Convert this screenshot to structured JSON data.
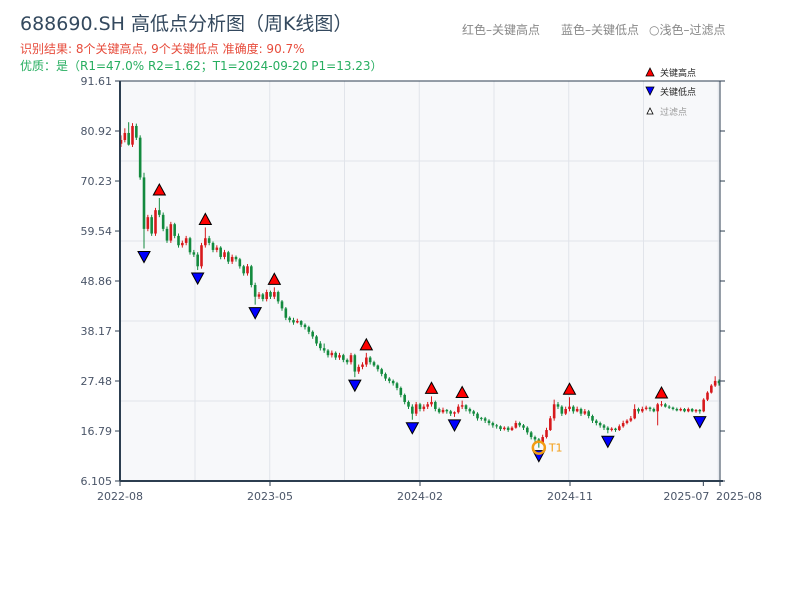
{
  "header": {
    "title": "688690.SH 高低点分析图（周K线图）",
    "result_line": "识别结果: 8个关键高点, 9个关键低点   准确度: 90.7%",
    "quality_line": "优质：是（R1=47.0%  R2=1.62；T1=2024-09-20 P1=13.23）",
    "legend_red": "红色–关键高点",
    "legend_blue": "蓝色–关键低点",
    "legend_light": "○浅色–过滤点"
  },
  "colors": {
    "up": "#d7191c",
    "down": "#138a3e",
    "high_marker": "#ff0000",
    "low_marker": "#0000ff",
    "t1_ring": "#f39c12",
    "axis": "#2c3e50",
    "grid": "#e1e4ea",
    "plot_bg": "#f7f8fa"
  },
  "chart_data": {
    "type": "candlestick",
    "interval": "weekly",
    "title": "688690.SH 高低点分析图（周K线图）",
    "ylim": [
      6.105,
      91.61
    ],
    "y_ticks": [
      "6.105",
      "16.79",
      "27.48",
      "38.17",
      "48.86",
      "59.54",
      "70.23",
      "80.92",
      "91.61"
    ],
    "x_ticks": [
      "2022-08",
      "2023-05",
      "2024-02",
      "2024-11",
      "2025-07",
      "2025-08"
    ],
    "x_range_months": [
      "2022-08",
      "2025-08"
    ],
    "grid": true,
    "legend": {
      "placement": "top-right",
      "items": [
        {
          "label": "关键高点",
          "symbol": "triangle-up",
          "color": "#ff0000"
        },
        {
          "label": "关键低点",
          "symbol": "triangle-down",
          "color": "#0000ff"
        },
        {
          "label": "过滤点",
          "symbol": "triangle-up-hollow",
          "color": "#888888"
        }
      ]
    },
    "ohlc": [
      [
        78.2,
        80.0,
        77.5,
        79.0
      ],
      [
        79.0,
        81.5,
        78.5,
        80.5
      ],
      [
        80.5,
        82.8,
        77.8,
        78.0
      ],
      [
        78.0,
        82.6,
        77.5,
        82.0
      ],
      [
        82.0,
        82.5,
        79.0,
        79.5
      ],
      [
        79.5,
        80.0,
        70.5,
        71.0
      ],
      [
        71.0,
        72.0,
        55.8,
        60.0
      ],
      [
        60.0,
        63.0,
        59.5,
        62.5
      ],
      [
        62.5,
        63.0,
        58.5,
        59.0
      ],
      [
        59.0,
        64.5,
        58.5,
        64.0
      ],
      [
        64.0,
        66.6,
        62.5,
        63.0
      ],
      [
        63.0,
        63.5,
        59.5,
        60.0
      ],
      [
        60.0,
        60.5,
        57.0,
        57.5
      ],
      [
        57.5,
        61.5,
        57.0,
        61.0
      ],
      [
        61.0,
        61.3,
        58.0,
        58.5
      ],
      [
        58.5,
        59.0,
        56.0,
        56.5
      ],
      [
        56.5,
        57.5,
        56.0,
        57.0
      ],
      [
        57.0,
        58.5,
        56.5,
        58.0
      ],
      [
        58.0,
        58.3,
        54.5,
        55.0
      ],
      [
        55.0,
        55.5,
        54.0,
        54.5
      ],
      [
        54.5,
        55.0,
        51.2,
        52.0
      ],
      [
        52.0,
        57.0,
        51.5,
        56.5
      ],
      [
        56.5,
        60.3,
        56.0,
        58.0
      ],
      [
        58.0,
        58.5,
        56.5,
        57.0
      ],
      [
        57.0,
        57.3,
        55.0,
        55.5
      ],
      [
        55.5,
        56.5,
        55.0,
        56.0
      ],
      [
        56.0,
        56.3,
        53.5,
        54.0
      ],
      [
        54.0,
        55.5,
        53.5,
        55.0
      ],
      [
        55.0,
        55.3,
        52.5,
        53.0
      ],
      [
        53.0,
        54.5,
        52.5,
        54.0
      ],
      [
        54.0,
        54.3,
        53.0,
        53.5
      ],
      [
        53.5,
        53.8,
        51.5,
        52.0
      ],
      [
        52.0,
        52.3,
        50.0,
        50.5
      ],
      [
        50.5,
        52.5,
        50.0,
        52.0
      ],
      [
        52.0,
        52.3,
        47.5,
        48.0
      ],
      [
        48.0,
        48.5,
        43.8,
        45.5
      ],
      [
        45.5,
        46.5,
        45.0,
        46.0
      ],
      [
        46.0,
        46.3,
        44.5,
        45.0
      ],
      [
        45.0,
        47.0,
        44.5,
        46.5
      ],
      [
        46.5,
        46.8,
        45.0,
        45.5
      ],
      [
        45.5,
        47.5,
        45.0,
        46.5
      ],
      [
        46.5,
        46.8,
        44.0,
        44.5
      ],
      [
        44.5,
        44.8,
        42.5,
        43.0
      ],
      [
        43.0,
        43.3,
        40.5,
        41.0
      ],
      [
        41.0,
        41.3,
        40.0,
        40.5
      ],
      [
        40.5,
        41.0,
        39.5,
        40.0
      ],
      [
        40.0,
        40.8,
        39.8,
        40.3
      ],
      [
        40.3,
        40.5,
        39.0,
        39.5
      ],
      [
        39.5,
        39.8,
        38.5,
        39.0
      ],
      [
        39.0,
        39.3,
        37.5,
        38.0
      ],
      [
        38.0,
        38.3,
        36.5,
        37.0
      ],
      [
        37.0,
        37.3,
        35.0,
        35.5
      ],
      [
        35.5,
        36.0,
        34.0,
        34.5
      ],
      [
        34.5,
        35.5,
        33.5,
        34.0
      ],
      [
        34.0,
        34.3,
        32.5,
        33.0
      ],
      [
        33.0,
        34.0,
        32.5,
        33.5
      ],
      [
        33.5,
        33.8,
        32.0,
        32.5
      ],
      [
        32.5,
        33.5,
        32.0,
        33.0
      ],
      [
        33.0,
        33.3,
        31.5,
        32.0
      ],
      [
        32.0,
        32.3,
        31.0,
        31.5
      ],
      [
        31.5,
        33.5,
        31.0,
        33.0
      ],
      [
        33.0,
        33.3,
        28.3,
        29.5
      ],
      [
        29.5,
        31.0,
        29.0,
        30.5
      ],
      [
        30.5,
        31.5,
        30.0,
        31.0
      ],
      [
        31.0,
        33.5,
        30.5,
        32.5
      ],
      [
        32.5,
        32.8,
        31.0,
        31.5
      ],
      [
        31.5,
        31.8,
        30.5,
        30.8
      ],
      [
        30.8,
        31.0,
        29.5,
        30.0
      ],
      [
        30.0,
        30.3,
        28.5,
        29.0
      ],
      [
        29.0,
        29.3,
        27.5,
        28.0
      ],
      [
        28.0,
        28.3,
        27.0,
        27.5
      ],
      [
        27.5,
        27.8,
        26.5,
        27.0
      ],
      [
        27.0,
        27.3,
        25.5,
        26.0
      ],
      [
        26.0,
        26.3,
        24.0,
        24.5
      ],
      [
        24.5,
        24.8,
        22.5,
        23.0
      ],
      [
        23.0,
        23.3,
        21.5,
        22.0
      ],
      [
        22.0,
        22.5,
        19.2,
        20.5
      ],
      [
        20.5,
        23.0,
        20.0,
        22.5
      ],
      [
        22.5,
        22.8,
        21.0,
        21.5
      ],
      [
        21.5,
        22.5,
        21.0,
        22.0
      ],
      [
        22.0,
        23.0,
        21.5,
        22.5
      ],
      [
        22.5,
        24.2,
        22.0,
        23.0
      ],
      [
        23.0,
        23.3,
        21.0,
        21.5
      ],
      [
        21.5,
        21.8,
        20.5,
        20.8
      ],
      [
        20.8,
        21.8,
        20.5,
        21.3
      ],
      [
        21.3,
        21.5,
        20.5,
        21.0
      ],
      [
        21.0,
        21.3,
        20.0,
        20.5
      ],
      [
        20.5,
        21.0,
        19.8,
        20.8
      ],
      [
        20.8,
        22.5,
        20.5,
        22.0
      ],
      [
        22.0,
        23.3,
        21.5,
        22.3
      ],
      [
        22.3,
        22.5,
        21.0,
        21.5
      ],
      [
        21.5,
        21.8,
        20.5,
        21.0
      ],
      [
        21.0,
        21.3,
        20.0,
        20.5
      ],
      [
        20.5,
        20.8,
        19.0,
        19.5
      ],
      [
        19.6,
        19.8,
        19.0,
        19.5
      ],
      [
        19.5,
        19.8,
        18.5,
        19.0
      ],
      [
        19.0,
        19.3,
        18.0,
        18.5
      ],
      [
        18.5,
        18.8,
        17.5,
        18.0
      ],
      [
        18.0,
        18.3,
        17.3,
        17.8
      ],
      [
        17.8,
        18.0,
        16.8,
        17.2
      ],
      [
        17.2,
        17.8,
        16.9,
        17.5
      ],
      [
        17.5,
        17.8,
        16.6,
        17.0
      ],
      [
        17.0,
        17.8,
        16.8,
        17.5
      ],
      [
        17.5,
        19.0,
        17.3,
        18.5
      ],
      [
        18.5,
        18.8,
        17.6,
        18.0
      ],
      [
        18.0,
        18.3,
        17.0,
        17.5
      ],
      [
        17.5,
        17.8,
        16.0,
        16.5
      ],
      [
        16.5,
        16.8,
        15.0,
        15.5
      ],
      [
        15.5,
        15.8,
        14.5,
        15.0
      ],
      [
        15.0,
        15.3,
        13.23,
        14.3
      ],
      [
        14.3,
        16.0,
        14.0,
        15.5
      ],
      [
        15.5,
        17.5,
        15.2,
        17.0
      ],
      [
        17.0,
        20.0,
        16.8,
        19.5
      ],
      [
        19.5,
        23.5,
        19.0,
        22.5
      ],
      [
        22.5,
        23.0,
        21.5,
        22.0
      ],
      [
        22.0,
        22.3,
        20.0,
        20.5
      ],
      [
        20.5,
        22.0,
        20.2,
        21.5
      ],
      [
        21.5,
        24.0,
        21.0,
        22.0
      ],
      [
        22.0,
        22.3,
        20.5,
        21.0
      ],
      [
        21.0,
        22.0,
        20.8,
        21.5
      ],
      [
        21.5,
        21.8,
        20.0,
        20.5
      ],
      [
        20.5,
        21.5,
        20.2,
        21.0
      ],
      [
        21.0,
        21.3,
        19.5,
        20.0
      ],
      [
        20.0,
        20.3,
        18.5,
        19.0
      ],
      [
        19.0,
        19.3,
        18.0,
        18.5
      ],
      [
        18.5,
        18.8,
        17.5,
        18.0
      ],
      [
        18.0,
        18.3,
        17.0,
        17.5
      ],
      [
        17.5,
        17.8,
        16.3,
        17.0
      ],
      [
        17.0,
        17.6,
        16.7,
        17.3
      ],
      [
        17.3,
        17.5,
        16.6,
        17.0
      ],
      [
        17.0,
        18.2,
        16.8,
        17.8
      ],
      [
        17.8,
        19.0,
        17.5,
        18.5
      ],
      [
        18.5,
        19.3,
        18.2,
        19.0
      ],
      [
        19.0,
        20.0,
        18.7,
        19.5
      ],
      [
        19.5,
        22.5,
        19.3,
        21.5
      ],
      [
        21.5,
        21.8,
        20.5,
        21.0
      ],
      [
        21.0,
        22.0,
        20.7,
        21.5
      ],
      [
        21.5,
        22.2,
        21.2,
        21.8
      ],
      [
        21.8,
        22.0,
        21.0,
        21.5
      ],
      [
        21.5,
        21.8,
        20.8,
        21.0
      ],
      [
        21.0,
        22.8,
        18.0,
        22.5
      ],
      [
        22.3,
        23.2,
        22.0,
        22.5
      ],
      [
        22.5,
        22.8,
        21.8,
        22.0
      ],
      [
        22.0,
        22.3,
        21.5,
        21.8
      ],
      [
        21.8,
        22.0,
        21.2,
        21.5
      ],
      [
        21.5,
        21.8,
        21.0,
        21.2
      ],
      [
        21.2,
        21.8,
        21.0,
        21.5
      ],
      [
        21.5,
        21.7,
        20.8,
        21.0
      ],
      [
        21.0,
        21.8,
        20.8,
        21.5
      ],
      [
        21.5,
        21.7,
        20.8,
        21.0
      ],
      [
        21.0,
        21.5,
        20.7,
        21.3
      ],
      [
        21.3,
        21.5,
        20.5,
        21.0
      ],
      [
        21.0,
        23.8,
        20.8,
        23.5
      ],
      [
        23.5,
        25.3,
        23.2,
        25.0
      ],
      [
        25.0,
        26.8,
        24.8,
        26.5
      ],
      [
        26.5,
        28.5,
        26.2,
        27.5
      ],
      [
        27.5,
        27.8,
        26.5,
        27.0
      ]
    ],
    "key_highs": [
      10,
      22,
      40,
      64,
      81,
      89,
      117,
      141
    ],
    "key_lows": [
      6,
      20,
      35,
      61,
      76,
      87,
      109,
      127,
      151
    ],
    "t1": {
      "index": 109,
      "label": "T1",
      "date": "2024-09-20",
      "price": 13.23
    }
  }
}
